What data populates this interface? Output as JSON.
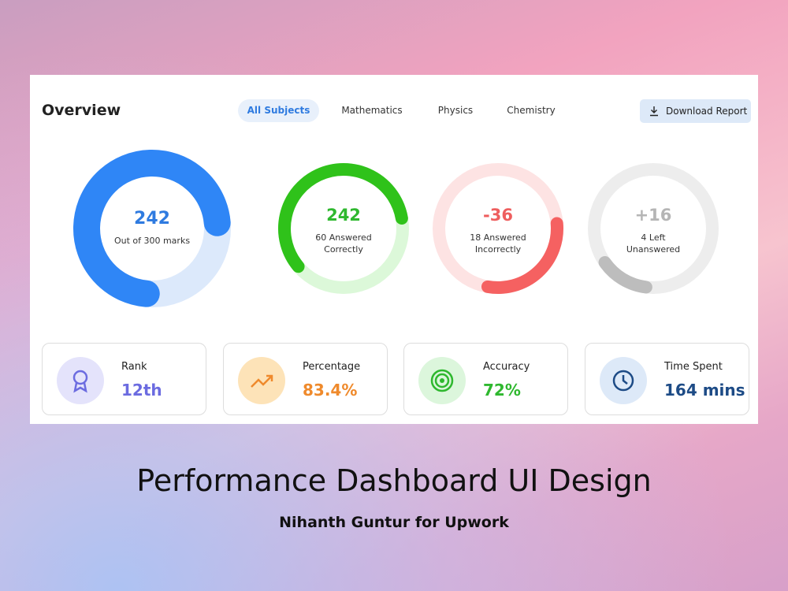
{
  "header": {
    "title": "Overview",
    "tabs": [
      "All Subjects",
      "Mathematics",
      "Physics",
      "Chemistry"
    ],
    "button": "Download Report"
  },
  "rings": [
    {
      "value": "242",
      "lines": [
        "Out of 300 marks"
      ]
    },
    {
      "value": "242",
      "lines": [
        "60 Answered",
        "Correctly"
      ]
    },
    {
      "value": "-36",
      "lines": [
        "18 Answered",
        "Incorrectly"
      ]
    },
    {
      "value": "+16",
      "lines": [
        "4 Left",
        "Unanswered"
      ]
    }
  ],
  "stats": [
    {
      "label": "Rank",
      "value": "12th"
    },
    {
      "label": "Percentage",
      "value": "83.4%"
    },
    {
      "label": "Accuracy",
      "value": "72%"
    },
    {
      "label": "Time Spent",
      "value": "164 mins"
    }
  ],
  "caption": {
    "title": "Performance Dashboard UI Design",
    "subtitle": "Nihanth Guntur for Upwork"
  }
}
